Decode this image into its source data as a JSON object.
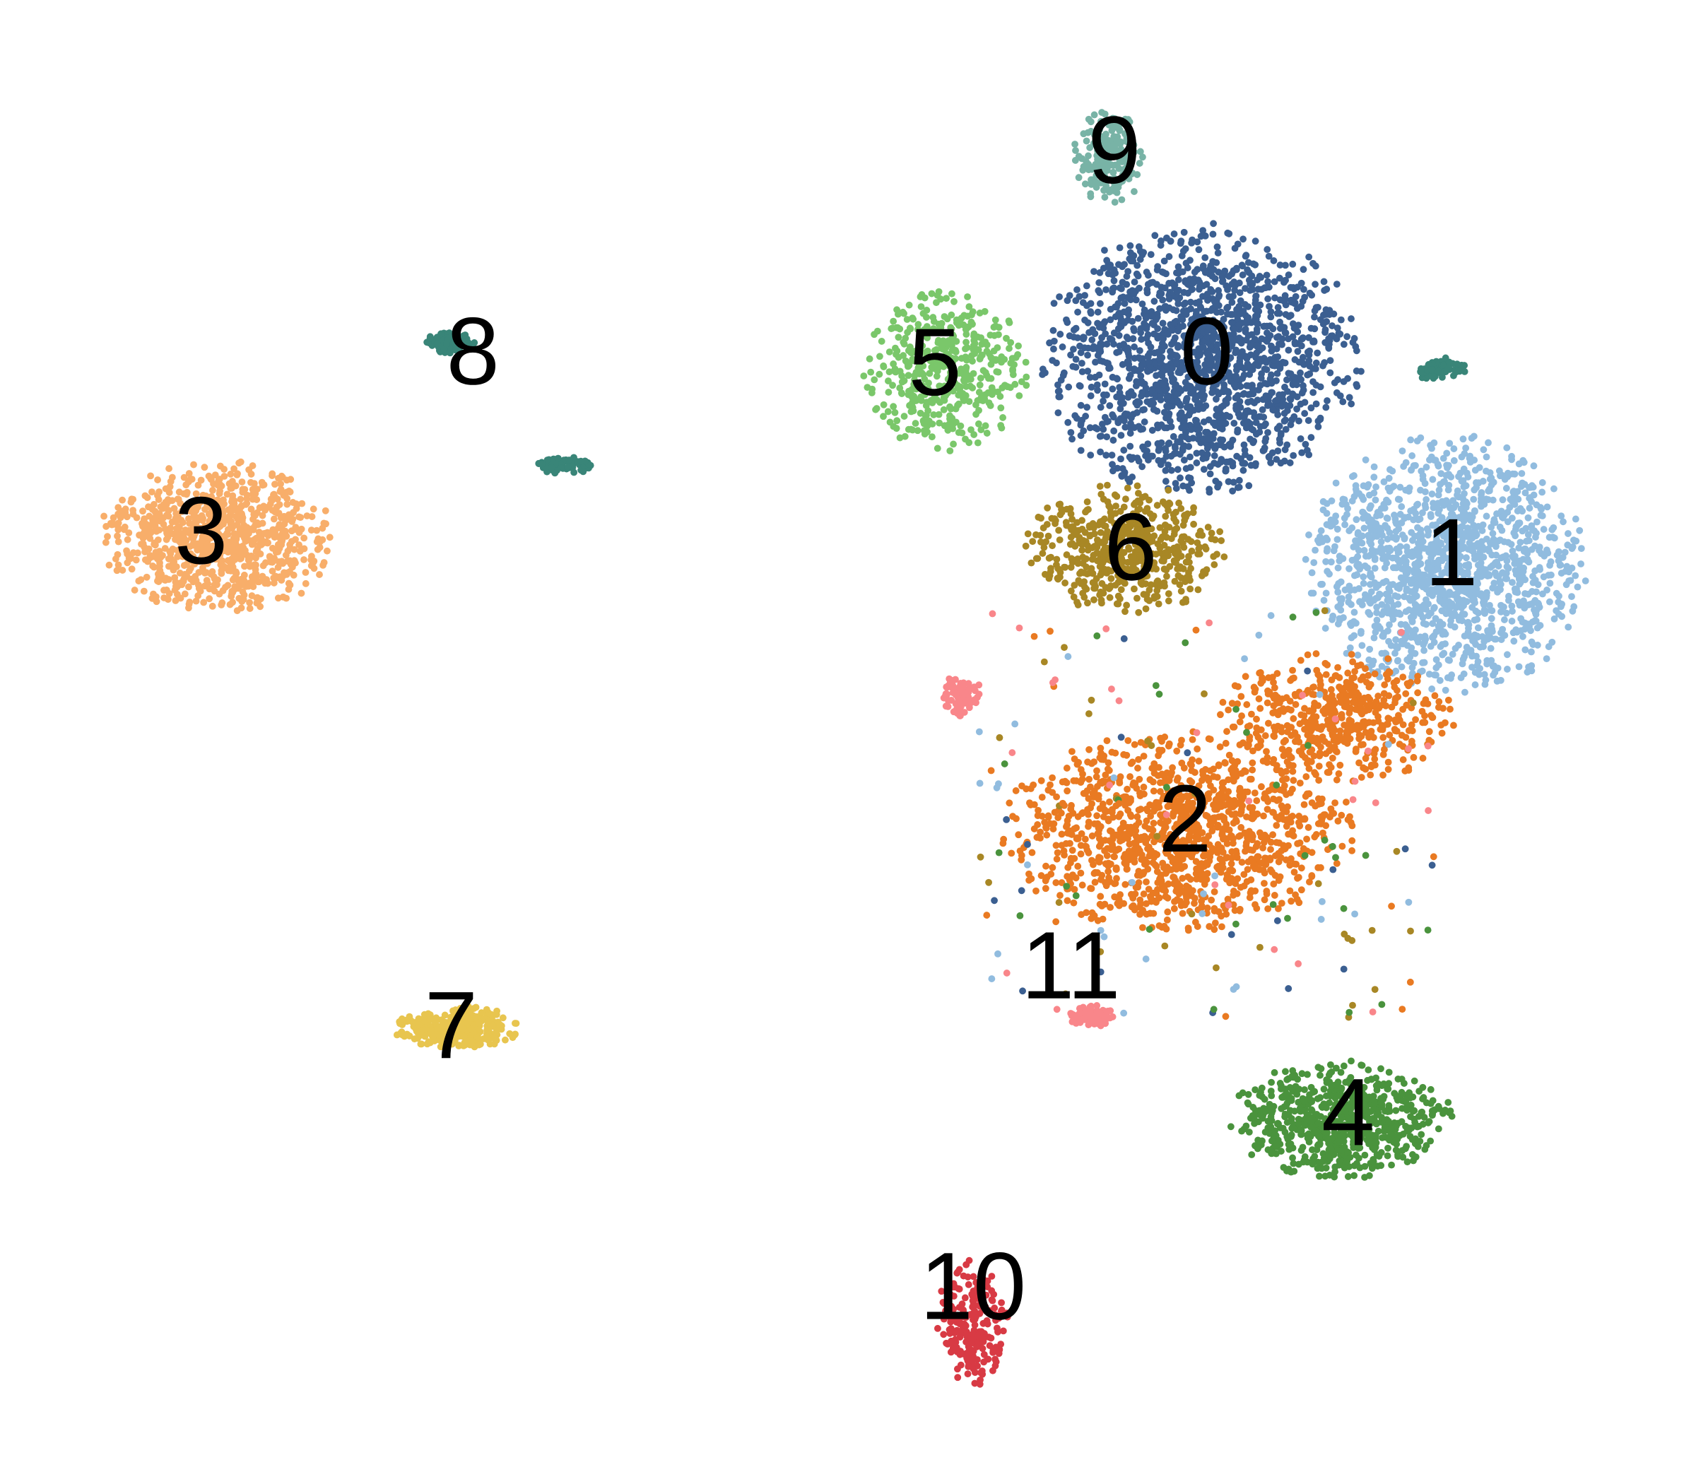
{
  "chart_data": {
    "type": "scatter",
    "title": "",
    "xlabel": "",
    "ylabel": "",
    "xlim": [
      0,
      1560
    ],
    "ylim": [
      0,
      1360
    ],
    "axes_visible": false,
    "grid": false,
    "legend": "none",
    "clusters": [
      {
        "label": "0",
        "color": "#3b5f91",
        "center": [
          1105,
          330
        ],
        "spread": [
          135,
          115
        ],
        "n": 1600
      },
      {
        "label": "1",
        "color": "#91bcdf",
        "center": [
          1330,
          520
        ],
        "spread": [
          120,
          110
        ],
        "n": 1400
      },
      {
        "label": "2",
        "color": "#e97a22",
        "center": [
          1085,
          765
        ],
        "spread": [
          150,
          85
        ],
        "n": 1200
      },
      {
        "label": "2",
        "color": "#e97a22",
        "center": [
          1230,
          660
        ],
        "spread": [
          100,
          55
        ],
        "n": 500
      },
      {
        "label": "3",
        "color": "#f8ae6a",
        "center": [
          200,
          495
        ],
        "spread": [
          100,
          65
        ],
        "n": 900
      },
      {
        "label": "4",
        "color": "#4a933d",
        "center": [
          1235,
          1030
        ],
        "spread": [
          95,
          50
        ],
        "n": 700
      },
      {
        "label": "5",
        "color": "#7ac76a",
        "center": [
          870,
          340
        ],
        "spread": [
          70,
          70
        ],
        "n": 450
      },
      {
        "label": "6",
        "color": "#a88725",
        "center": [
          1035,
          505
        ],
        "spread": [
          85,
          55
        ],
        "n": 550
      },
      {
        "label": "7",
        "color": "#e8c54f",
        "center": [
          420,
          945
        ],
        "spread": [
          55,
          18
        ],
        "n": 320
      },
      {
        "label": "8",
        "color": "#398578",
        "center": [
          415,
          315
        ],
        "spread": [
          22,
          10
        ],
        "n": 90
      },
      {
        "label": "8",
        "color": "#398578",
        "center": [
          520,
          428
        ],
        "spread": [
          25,
          8
        ],
        "n": 70
      },
      {
        "label": "8",
        "color": "#398578",
        "center": [
          1325,
          340
        ],
        "spread": [
          22,
          10
        ],
        "n": 70
      },
      {
        "label": "9",
        "color": "#78b3a6",
        "center": [
          1020,
          145
        ],
        "spread": [
          30,
          40
        ],
        "n": 200
      },
      {
        "label": "10",
        "color": "#d83a44",
        "center": [
          895,
          1215
        ],
        "spread": [
          30,
          55
        ],
        "n": 220
      },
      {
        "label": "11",
        "color": "#f9868a",
        "center": [
          1005,
          935
        ],
        "spread": [
          22,
          10
        ],
        "n": 90
      },
      {
        "label": "11",
        "color": "#f9868a",
        "center": [
          885,
          640
        ],
        "spread": [
          18,
          18
        ],
        "n": 90
      }
    ],
    "labels": [
      {
        "text": "0",
        "x": 1110,
        "y": 330
      },
      {
        "text": "1",
        "x": 1335,
        "y": 515
      },
      {
        "text": "2",
        "x": 1090,
        "y": 760
      },
      {
        "text": "3",
        "x": 185,
        "y": 495
      },
      {
        "text": "4",
        "x": 1240,
        "y": 1030
      },
      {
        "text": "5",
        "x": 860,
        "y": 340
      },
      {
        "text": "6",
        "x": 1040,
        "y": 510
      },
      {
        "text": "7",
        "x": 415,
        "y": 950
      },
      {
        "text": "8",
        "x": 435,
        "y": 330
      },
      {
        "text": "9",
        "x": 1025,
        "y": 145
      },
      {
        "text": "10",
        "x": 895,
        "y": 1190
      },
      {
        "text": "11",
        "x": 985,
        "y": 895
      }
    ]
  }
}
